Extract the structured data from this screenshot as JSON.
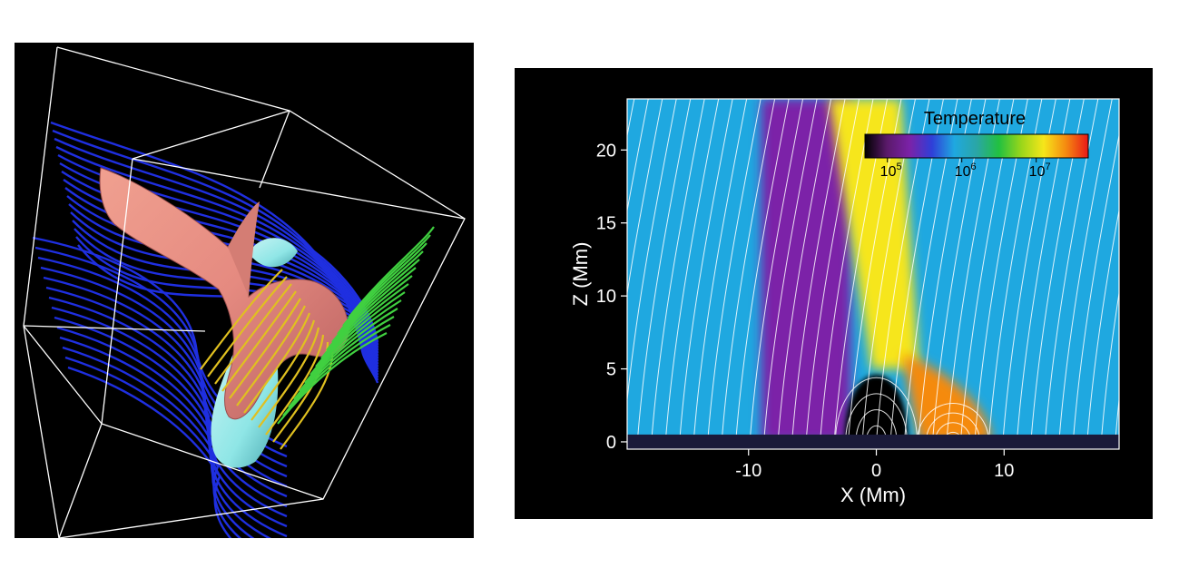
{
  "figure": {
    "left_panel_name": "3d-field-line-rendering",
    "right_panel_name": "temperature-contour-plot"
  },
  "colors": {
    "background": "#000000",
    "field_lines_blue": "#1f2fe0",
    "field_lines_yellow": "#e0c020",
    "field_lines_green": "#40d040",
    "surface_pink": "#e58a80",
    "surface_cyan": "#8fe6e6",
    "ambient_teal": "#2aa6a6"
  },
  "chart_data": {
    "type": "heatmap",
    "title": "",
    "xlabel": "X (Mm)",
    "ylabel": "Z (Mm)",
    "xlim": [
      -19.5,
      19
    ],
    "ylim": [
      -0.5,
      23.5
    ],
    "x_ticks": [
      -10,
      0,
      10
    ],
    "y_ticks": [
      0,
      5,
      10,
      15,
      20
    ],
    "colorbar": {
      "title": "Temperature",
      "scale": "log",
      "range": [
        50000,
        50000000
      ],
      "tick_values": [
        100000,
        1000000,
        10000000
      ],
      "tick_bases": [
        "10",
        "10",
        "10"
      ],
      "tick_exponents": [
        "5",
        "6",
        "7"
      ],
      "colors": [
        "#000000",
        "#5b1a6b",
        "#7b22a8",
        "#2f3fd8",
        "#1fa8e0",
        "#2aa6a6",
        "#22c040",
        "#9ad61a",
        "#f6e61a",
        "#f58a10",
        "#e81818"
      ]
    },
    "ambient_temperature": 1000000,
    "features": [
      {
        "name": "cool-column",
        "x_range": [
          -9,
          -2
        ],
        "z_range": [
          0,
          23.5
        ],
        "temperature": 150000
      },
      {
        "name": "hot-jet",
        "x_range": [
          -3,
          3
        ],
        "z_range": [
          5,
          23.5
        ],
        "temperature": 15000000
      },
      {
        "name": "dense-dome",
        "x_range": [
          -2.5,
          2.5
        ],
        "z_range": [
          0,
          5.5
        ],
        "temperature": 50000
      },
      {
        "name": "hot-loop",
        "x_range": [
          2,
          9
        ],
        "z_range": [
          0,
          6
        ],
        "temperature": 25000000
      }
    ],
    "grid": false,
    "legend": "top-right"
  }
}
